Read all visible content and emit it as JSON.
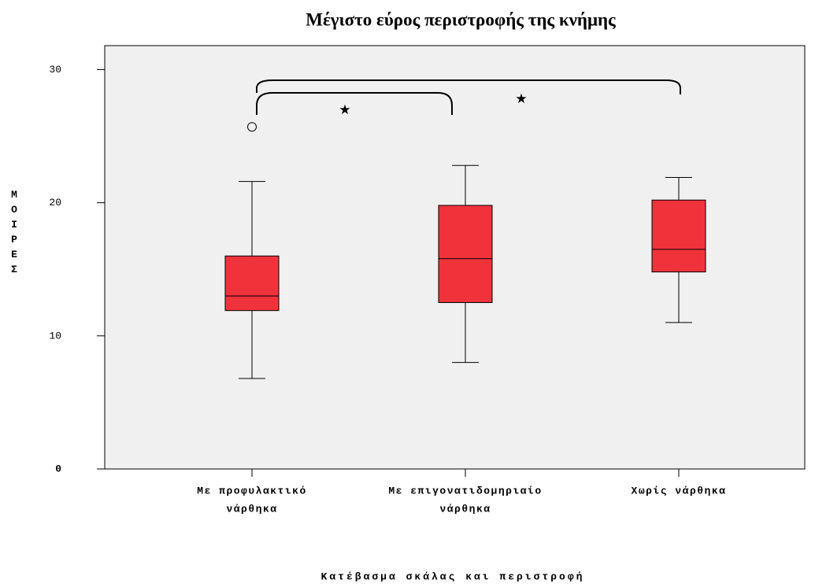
{
  "chart_data": {
    "type": "box",
    "title": "Μέγιστο εύρος περιστροφής της κνήμης",
    "xlabel": "Κατέβασμα σκάλας και περιστροφή",
    "ylabel": "ΜΟΙΡΕΣ",
    "categories": [
      [
        "Με προφυλακτικό",
        "νάρθηκα"
      ],
      [
        "Με επιγονατιδομηριαίο",
        "νάρθηκα"
      ],
      [
        "Χωρίς νάρθηκα"
      ]
    ],
    "boxes": [
      {
        "low": 6.8,
        "q1": 11.9,
        "median": 13.0,
        "q3": 16.0,
        "high": 21.6,
        "outliers": [
          25.7
        ]
      },
      {
        "low": 8.0,
        "q1": 12.5,
        "median": 15.8,
        "q3": 19.8,
        "high": 22.8,
        "outliers": []
      },
      {
        "low": 11.0,
        "q1": 14.8,
        "median": 16.5,
        "q3": 20.2,
        "high": 21.9,
        "outliers": []
      }
    ],
    "color": "#f0333b",
    "ylim": [
      0,
      31.8
    ],
    "yticks": [
      0,
      10,
      20,
      30
    ],
    "annotations": [
      "★",
      "★"
    ]
  }
}
